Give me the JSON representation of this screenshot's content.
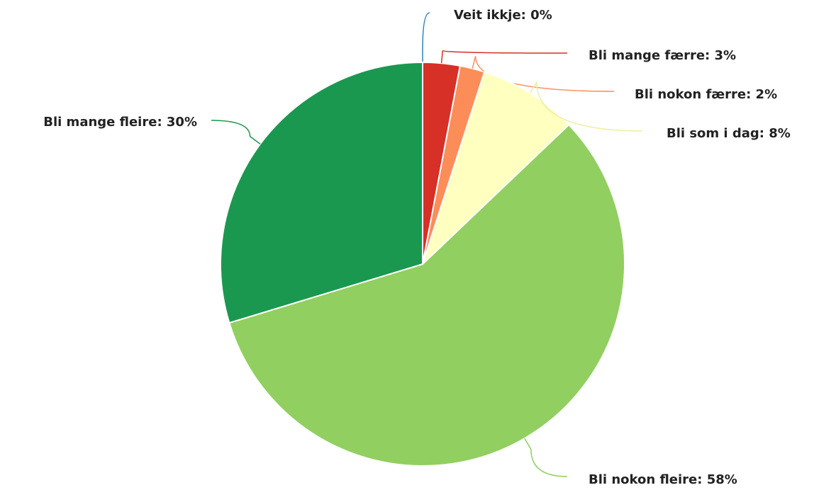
{
  "chart_data": {
    "type": "pie",
    "values": [
      0,
      3,
      2,
      8,
      58,
      30
    ],
    "value_labels": [
      "Veit ikkje: 0%",
      "Bli mange færre: 3%",
      "Bli nokon færre: 2%",
      "Bli som i dag: 8%",
      "Bli nokon fleire: 58%",
      "Bli mange fleire: 30%"
    ],
    "colors": [
      "#2b83ba",
      "#d73027",
      "#fc8d59",
      "#ffffbf",
      "#91cf60",
      "#1a9850"
    ]
  }
}
